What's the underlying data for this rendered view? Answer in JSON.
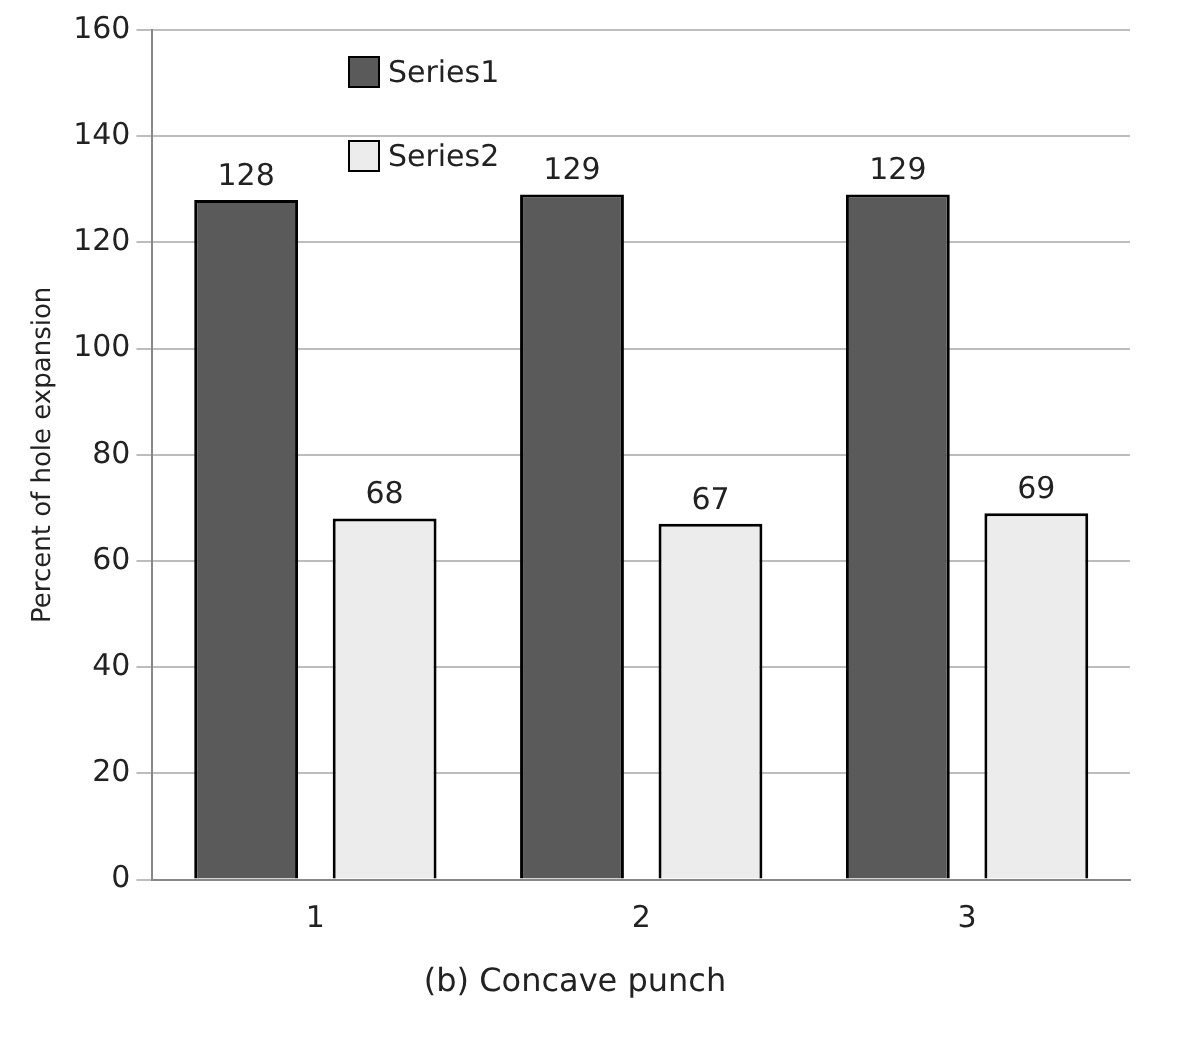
{
  "chart_data": {
    "type": "bar",
    "title": "(b) Concave punch",
    "ylabel": "Percent of hole expansion",
    "categories": [
      "1",
      "2",
      "3"
    ],
    "series": [
      {
        "name": "Series1",
        "color": "#5a5a5a",
        "values": [
          128,
          129,
          129
        ]
      },
      {
        "name": "Series2",
        "color": "#ececec",
        "values": [
          68,
          67,
          69
        ]
      }
    ],
    "ylim": [
      0,
      160
    ],
    "yticks": [
      0,
      20,
      40,
      60,
      80,
      100,
      120,
      140,
      160
    ],
    "grid": "y",
    "legend": "top left",
    "data_labels": true
  }
}
